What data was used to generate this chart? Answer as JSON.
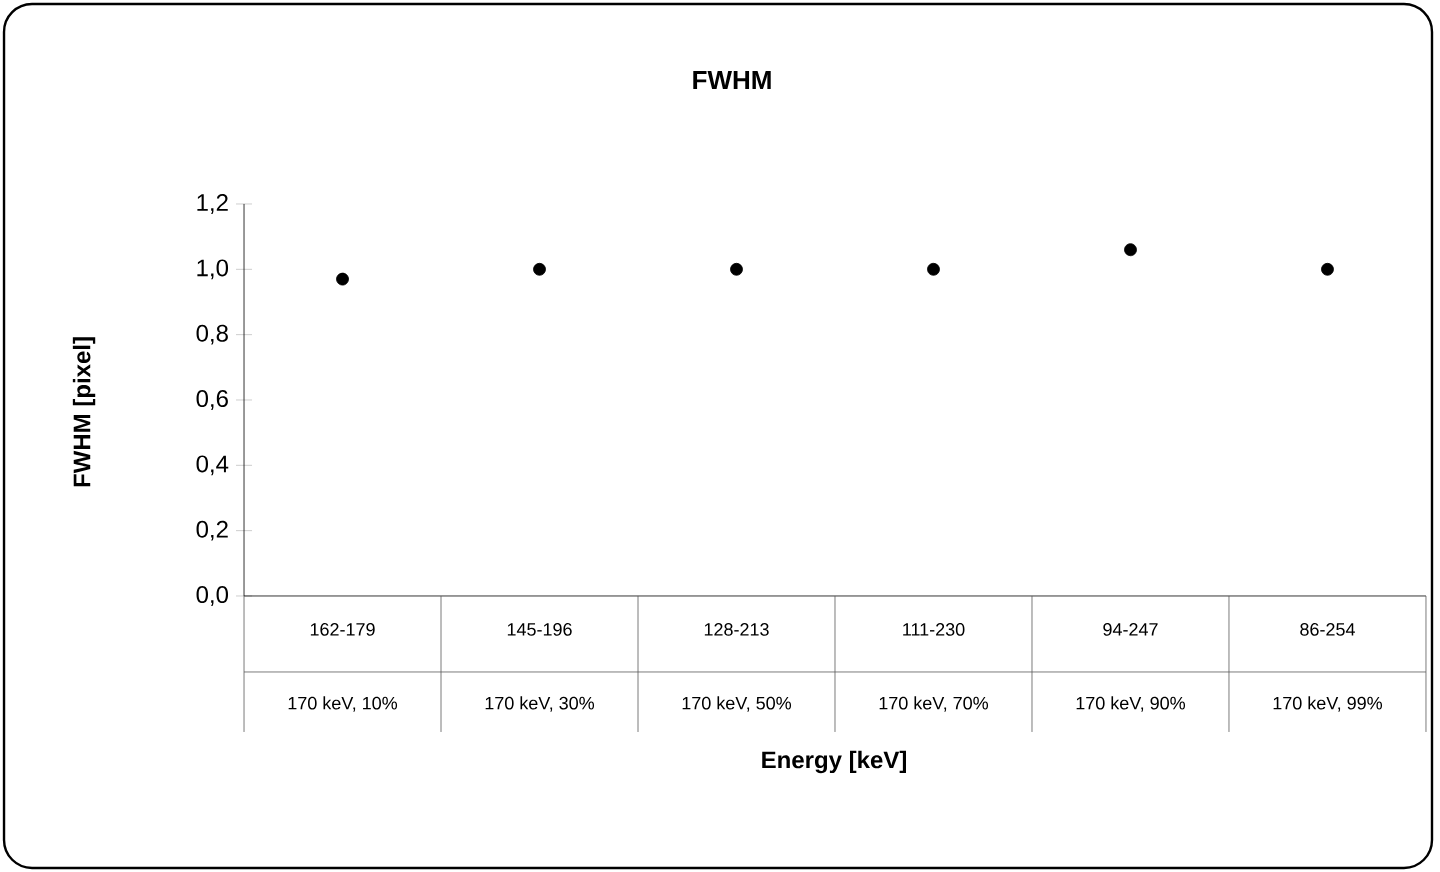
{
  "chart_data": {
    "type": "scatter",
    "title": "FWHM",
    "xlabel": "Energy [keV]",
    "ylabel": "FWHM [pixel]",
    "categories": [
      "162-179",
      "145-196",
      "128-213",
      "111-230",
      "94-247",
      "86-254"
    ],
    "series": [
      {
        "color": "#000000",
        "values": [
          0.97,
          1.0,
          1.0,
          1.0,
          1.06,
          1.0
        ]
      }
    ],
    "marker": "circle",
    "ylim": [
      0,
      1.2
    ],
    "yticks": [
      {
        "value": 0,
        "label": "0,0"
      },
      {
        "value": 0.2,
        "label": "0,2"
      },
      {
        "value": 0.4,
        "label": "0,4"
      },
      {
        "value": 0.6,
        "label": "0,6"
      },
      {
        "value": 0.8,
        "label": "0,8"
      },
      {
        "value": 1.0,
        "label": "1,0"
      },
      {
        "value": 1.2,
        "label": "1,2"
      }
    ],
    "annotations": [
      "170 keV, 10%",
      "170 keV, 30%",
      "170 keV, 50%",
      "170 keV, 70%",
      "170 keV, 90%",
      "170 keV, 99%"
    ]
  }
}
